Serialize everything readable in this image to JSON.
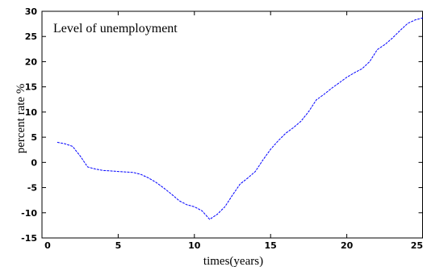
{
  "chart_data": {
    "type": "line",
    "title": "Level of unemployment",
    "xlabel": "times(years)",
    "ylabel": "percent rate %",
    "xlim": [
      0,
      25
    ],
    "ylim": [
      -15,
      30
    ],
    "x_ticks": [
      "0",
      "5",
      "10",
      "15",
      "20",
      "25"
    ],
    "y_ticks": [
      "-15",
      "-10",
      "-5",
      "0",
      "5",
      "10",
      "15",
      "20",
      "25",
      "30"
    ],
    "grid": false,
    "legend": "none",
    "line_color": "#0000ff",
    "series": [
      {
        "x": [
          1,
          1.5,
          2,
          2.5,
          3,
          3.5,
          4,
          4.5,
          5,
          5.5,
          6,
          6.5,
          7,
          7.5,
          8,
          8.5,
          9,
          9.5,
          10,
          10.5,
          11,
          11.5,
          12,
          12.5,
          13,
          13.5,
          14,
          14.5,
          15,
          15.5,
          16,
          16.5,
          17,
          17.5,
          18,
          18.5,
          19,
          19.5,
          20,
          20.5,
          21,
          21.5,
          22,
          22.5,
          23,
          23.5,
          24,
          24.5,
          25
        ],
        "y": [
          4,
          3.7,
          3.2,
          1.3,
          -0.9,
          -1.3,
          -1.6,
          -1.7,
          -1.8,
          -1.9,
          -2,
          -2.4,
          -3.1,
          -4,
          -5.1,
          -6.3,
          -7.6,
          -8.4,
          -8.8,
          -9.6,
          -11.3,
          -10.3,
          -8.8,
          -6.5,
          -4.3,
          -3.1,
          -1.8,
          0.5,
          2.6,
          4.3,
          5.8,
          6.9,
          8.2,
          10.1,
          12.4,
          13.5,
          14.7,
          15.8,
          16.9,
          17.8,
          18.6,
          20,
          22.4,
          23.4,
          24.7,
          26.2,
          27.6,
          28.3,
          28.7
        ]
      }
    ]
  }
}
